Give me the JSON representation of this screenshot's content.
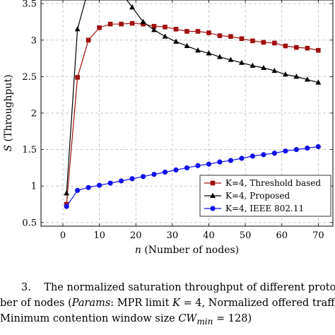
{
  "chart_data": {
    "type": "line",
    "xlabel_var": "n",
    "xlabel_text": " (Number of nodes)",
    "ylabel_var": "S",
    "ylabel_text": " (Throughput)",
    "xlim": [
      -6,
      74
    ],
    "ylim": [
      0.45,
      3.55
    ],
    "xticks": [
      0,
      10,
      20,
      30,
      40,
      50,
      60,
      70
    ],
    "yticks": [
      0.5,
      1,
      1.5,
      2,
      2.5,
      3,
      3.5
    ],
    "ytick_labels": [
      "0.5",
      "1",
      "1.5",
      "2",
      "2.5",
      "3",
      "3.5"
    ],
    "grid": true,
    "legend_position": "lower-right",
    "series": [
      {
        "name": "K=4, Threshold based",
        "color": "#a01010",
        "marker": "square",
        "x": [
          1,
          4,
          7,
          10,
          13,
          16,
          19,
          22,
          25,
          28,
          31,
          34,
          37,
          40,
          43,
          46,
          49,
          52,
          55,
          58,
          61,
          64,
          67,
          70
        ],
        "y": [
          0.75,
          2.49,
          3.0,
          3.17,
          3.22,
          3.22,
          3.23,
          3.22,
          3.19,
          3.18,
          3.15,
          3.12,
          3.12,
          3.1,
          3.06,
          3.05,
          3.02,
          2.99,
          2.97,
          2.96,
          2.92,
          2.9,
          2.89,
          2.86
        ]
      },
      {
        "name": "K=4, Proposed",
        "color": "#000000",
        "marker": "triangle",
        "x": [
          1,
          4,
          7,
          10,
          13,
          16,
          19,
          22,
          25,
          28,
          31,
          34,
          37,
          40,
          43,
          46,
          49,
          52,
          55,
          58,
          61,
          64,
          67,
          70
        ],
        "y": [
          0.9,
          3.15,
          3.7,
          3.85,
          3.8,
          3.65,
          3.45,
          3.25,
          3.14,
          3.05,
          2.98,
          2.92,
          2.86,
          2.82,
          2.77,
          2.73,
          2.69,
          2.65,
          2.62,
          2.58,
          2.53,
          2.5,
          2.46,
          2.42
        ]
      },
      {
        "name": "K=4, IEEE 802.11",
        "color": "#1010ee",
        "marker": "circle",
        "x": [
          1,
          4,
          7,
          10,
          13,
          16,
          19,
          22,
          25,
          28,
          31,
          34,
          37,
          40,
          43,
          46,
          49,
          52,
          55,
          58,
          61,
          64,
          67,
          70
        ],
        "y": [
          0.72,
          0.94,
          0.98,
          1.01,
          1.04,
          1.07,
          1.1,
          1.13,
          1.16,
          1.19,
          1.22,
          1.25,
          1.28,
          1.3,
          1.33,
          1.35,
          1.38,
          1.41,
          1.43,
          1.45,
          1.48,
          1.5,
          1.52,
          1.54
        ]
      }
    ]
  },
  "caption": {
    "line1_prefix": "3.",
    "line1_text": "The normalized saturation throughput of different protocols aga",
    "line2_text_a": "ber of nodes (",
    "line2_params": "Params",
    "line2_text_b": ": MPR limit ",
    "line2_K": "K",
    "line2_text_c": " = 4, Normalized offered traff",
    "line3_text_a": "Minimum contention window size ",
    "line3_CW": "CW",
    "line3_min": "min",
    "line3_text_b": " = 128)"
  }
}
